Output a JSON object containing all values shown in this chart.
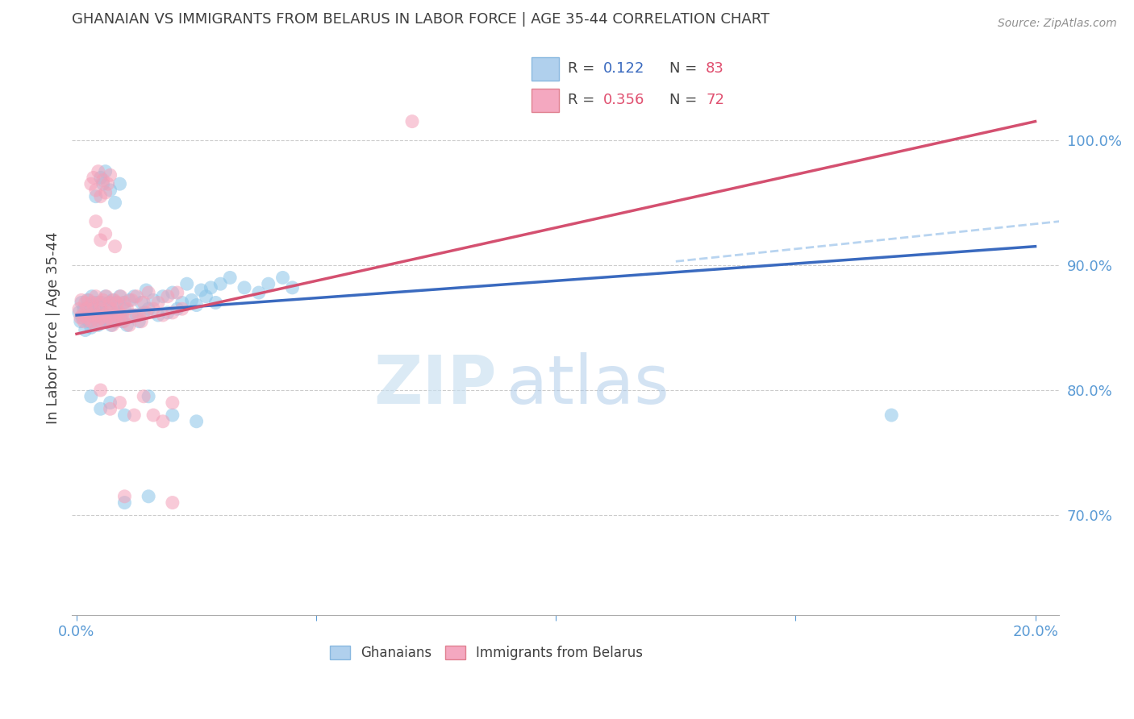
{
  "title": "GHANAIAN VS IMMIGRANTS FROM BELARUS IN LABOR FORCE | AGE 35-44 CORRELATION CHART",
  "source": "Source: ZipAtlas.com",
  "ylabel": "In Labor Force | Age 35-44",
  "xlabel_ticks": [
    "0.0%",
    "",
    "",
    "",
    "20.0%"
  ],
  "xlabel_values": [
    0.0,
    5.0,
    10.0,
    15.0,
    20.0
  ],
  "ylabel_ticks": [
    "70.0%",
    "80.0%",
    "90.0%",
    "100.0%"
  ],
  "ylabel_values": [
    70.0,
    80.0,
    90.0,
    100.0
  ],
  "xlim": [
    -0.1,
    20.5
  ],
  "ylim": [
    62.0,
    108.0
  ],
  "ghanaian_color": "#89c4e8",
  "belarus_color": "#f4a0b8",
  "regression_blue_color": "#3a6abf",
  "regression_pink_color": "#d45070",
  "dashed_color": "#b8d4f0",
  "watermark_zip": "ZIP",
  "watermark_atlas": "atlas",
  "title_color": "#404040",
  "tick_color": "#5b9bd5",
  "blue_line": [
    [
      0.0,
      86.0
    ],
    [
      20.0,
      91.5
    ]
  ],
  "pink_line": [
    [
      0.0,
      84.5
    ],
    [
      20.0,
      101.5
    ]
  ],
  "dash_line": [
    [
      12.5,
      90.3
    ],
    [
      20.5,
      93.5
    ]
  ],
  "ghanaian_points": [
    [
      0.05,
      86.2
    ],
    [
      0.08,
      85.5
    ],
    [
      0.1,
      87.0
    ],
    [
      0.12,
      85.8
    ],
    [
      0.15,
      86.5
    ],
    [
      0.18,
      84.8
    ],
    [
      0.2,
      86.0
    ],
    [
      0.22,
      87.2
    ],
    [
      0.25,
      85.5
    ],
    [
      0.28,
      86.8
    ],
    [
      0.3,
      85.0
    ],
    [
      0.32,
      87.5
    ],
    [
      0.35,
      86.2
    ],
    [
      0.38,
      85.8
    ],
    [
      0.4,
      87.0
    ],
    [
      0.42,
      86.5
    ],
    [
      0.45,
      85.2
    ],
    [
      0.48,
      86.8
    ],
    [
      0.5,
      85.5
    ],
    [
      0.52,
      87.0
    ],
    [
      0.55,
      86.2
    ],
    [
      0.58,
      85.8
    ],
    [
      0.6,
      87.5
    ],
    [
      0.62,
      86.0
    ],
    [
      0.65,
      85.5
    ],
    [
      0.68,
      87.0
    ],
    [
      0.7,
      86.5
    ],
    [
      0.72,
      85.2
    ],
    [
      0.75,
      87.2
    ],
    [
      0.78,
      86.0
    ],
    [
      0.8,
      85.5
    ],
    [
      0.82,
      87.0
    ],
    [
      0.85,
      86.2
    ],
    [
      0.88,
      85.8
    ],
    [
      0.9,
      87.5
    ],
    [
      0.92,
      86.0
    ],
    [
      0.95,
      85.5
    ],
    [
      0.98,
      87.0
    ],
    [
      1.0,
      86.5
    ],
    [
      1.05,
      85.2
    ],
    [
      1.1,
      87.2
    ],
    [
      1.15,
      86.0
    ],
    [
      1.2,
      87.5
    ],
    [
      1.25,
      86.0
    ],
    [
      1.3,
      85.5
    ],
    [
      1.35,
      87.0
    ],
    [
      1.4,
      86.2
    ],
    [
      1.45,
      88.0
    ],
    [
      1.5,
      86.5
    ],
    [
      1.6,
      87.2
    ],
    [
      1.7,
      86.0
    ],
    [
      1.8,
      87.5
    ],
    [
      1.9,
      86.2
    ],
    [
      2.0,
      87.8
    ],
    [
      2.1,
      86.5
    ],
    [
      2.2,
      87.0
    ],
    [
      2.3,
      88.5
    ],
    [
      2.4,
      87.2
    ],
    [
      2.5,
      86.8
    ],
    [
      2.6,
      88.0
    ],
    [
      2.7,
      87.5
    ],
    [
      2.8,
      88.2
    ],
    [
      2.9,
      87.0
    ],
    [
      3.0,
      88.5
    ],
    [
      3.2,
      89.0
    ],
    [
      3.5,
      88.2
    ],
    [
      3.8,
      87.8
    ],
    [
      4.0,
      88.5
    ],
    [
      4.3,
      89.0
    ],
    [
      4.5,
      88.2
    ],
    [
      0.4,
      95.5
    ],
    [
      0.5,
      97.0
    ],
    [
      0.55,
      96.5
    ],
    [
      0.6,
      97.5
    ],
    [
      0.7,
      96.0
    ],
    [
      0.8,
      95.0
    ],
    [
      0.9,
      96.5
    ],
    [
      0.3,
      79.5
    ],
    [
      0.5,
      78.5
    ],
    [
      0.7,
      79.0
    ],
    [
      1.0,
      78.0
    ],
    [
      1.5,
      79.5
    ],
    [
      2.0,
      78.0
    ],
    [
      2.5,
      77.5
    ],
    [
      1.0,
      71.0
    ],
    [
      1.5,
      71.5
    ],
    [
      17.0,
      78.0
    ]
  ],
  "belarus_points": [
    [
      0.05,
      86.5
    ],
    [
      0.08,
      85.8
    ],
    [
      0.1,
      87.2
    ],
    [
      0.12,
      86.0
    ],
    [
      0.15,
      85.5
    ],
    [
      0.18,
      87.0
    ],
    [
      0.2,
      86.5
    ],
    [
      0.22,
      85.8
    ],
    [
      0.25,
      87.2
    ],
    [
      0.28,
      86.0
    ],
    [
      0.3,
      85.5
    ],
    [
      0.32,
      87.0
    ],
    [
      0.35,
      86.5
    ],
    [
      0.38,
      85.2
    ],
    [
      0.4,
      87.5
    ],
    [
      0.42,
      86.0
    ],
    [
      0.45,
      85.5
    ],
    [
      0.48,
      87.0
    ],
    [
      0.5,
      86.5
    ],
    [
      0.52,
      85.8
    ],
    [
      0.55,
      87.2
    ],
    [
      0.58,
      86.0
    ],
    [
      0.6,
      85.5
    ],
    [
      0.62,
      87.5
    ],
    [
      0.65,
      86.2
    ],
    [
      0.68,
      85.8
    ],
    [
      0.7,
      87.0
    ],
    [
      0.72,
      86.5
    ],
    [
      0.75,
      85.2
    ],
    [
      0.78,
      87.2
    ],
    [
      0.8,
      86.0
    ],
    [
      0.82,
      85.5
    ],
    [
      0.85,
      87.0
    ],
    [
      0.88,
      86.2
    ],
    [
      0.9,
      85.8
    ],
    [
      0.92,
      87.5
    ],
    [
      0.95,
      86.0
    ],
    [
      0.98,
      85.5
    ],
    [
      1.0,
      87.0
    ],
    [
      1.05,
      86.5
    ],
    [
      1.1,
      85.2
    ],
    [
      1.15,
      87.2
    ],
    [
      1.2,
      86.0
    ],
    [
      1.25,
      87.5
    ],
    [
      1.3,
      86.0
    ],
    [
      1.35,
      85.5
    ],
    [
      1.4,
      87.0
    ],
    [
      1.45,
      86.2
    ],
    [
      1.5,
      87.8
    ],
    [
      1.6,
      86.5
    ],
    [
      1.7,
      87.0
    ],
    [
      1.8,
      86.0
    ],
    [
      1.9,
      87.5
    ],
    [
      2.0,
      86.2
    ],
    [
      2.1,
      87.8
    ],
    [
      2.2,
      86.5
    ],
    [
      0.3,
      96.5
    ],
    [
      0.35,
      97.0
    ],
    [
      0.4,
      96.0
    ],
    [
      0.45,
      97.5
    ],
    [
      0.5,
      95.5
    ],
    [
      0.55,
      96.8
    ],
    [
      0.6,
      95.8
    ],
    [
      0.65,
      96.5
    ],
    [
      0.7,
      97.2
    ],
    [
      0.4,
      93.5
    ],
    [
      0.5,
      92.0
    ],
    [
      0.6,
      92.5
    ],
    [
      0.8,
      91.5
    ],
    [
      0.5,
      80.0
    ],
    [
      0.7,
      78.5
    ],
    [
      0.9,
      79.0
    ],
    [
      1.2,
      78.0
    ],
    [
      1.4,
      79.5
    ],
    [
      1.6,
      78.0
    ],
    [
      1.8,
      77.5
    ],
    [
      2.0,
      79.0
    ],
    [
      1.0,
      71.5
    ],
    [
      2.0,
      71.0
    ],
    [
      7.0,
      101.5
    ]
  ]
}
